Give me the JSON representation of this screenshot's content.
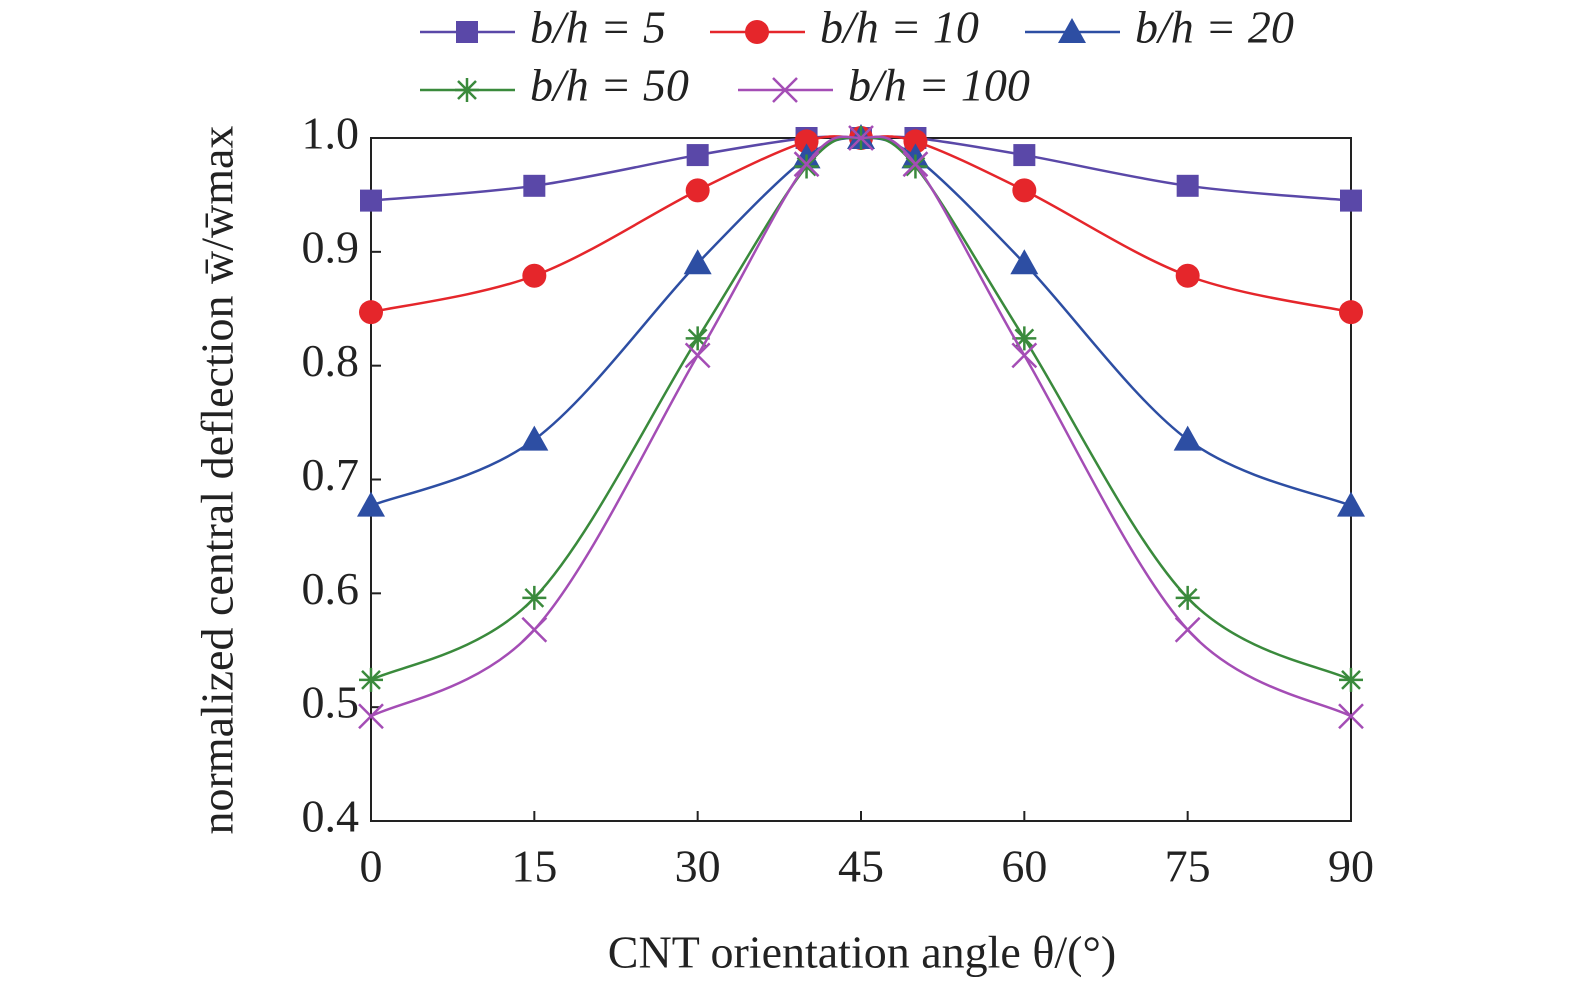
{
  "chart_data": {
    "type": "line",
    "x_label": "CNT orientation angle θ/(°)",
    "y_label": "normalized central deflection w̄/w̄max",
    "x": [
      0,
      15,
      30,
      40,
      45,
      50,
      60,
      75,
      90
    ],
    "series": [
      {
        "name": "b/h = 5",
        "color": "#5a48a8",
        "marker": "square",
        "values": [
          0.945,
          0.958,
          0.985,
          1.0,
          1.0,
          1.0,
          0.985,
          0.958,
          0.945
        ]
      },
      {
        "name": "b/h = 10",
        "color": "#e5262b",
        "marker": "circle",
        "values": [
          0.847,
          0.879,
          0.954,
          0.997,
          1.0,
          0.997,
          0.954,
          0.879,
          0.847
        ]
      },
      {
        "name": "b/h = 20",
        "color": "#2d4ea3",
        "marker": "triangle",
        "values": [
          0.677,
          0.735,
          0.89,
          0.983,
          1.0,
          0.983,
          0.89,
          0.735,
          0.677
        ]
      },
      {
        "name": "b/h = 50",
        "color": "#3a8a3c",
        "marker": "star",
        "values": [
          0.524,
          0.596,
          0.824,
          0.975,
          1.0,
          0.975,
          0.824,
          0.596,
          0.524
        ]
      },
      {
        "name": "b/h = 100",
        "color": "#a44db5",
        "marker": "x",
        "values": [
          0.492,
          0.568,
          0.809,
          0.977,
          1.0,
          0.977,
          0.809,
          0.568,
          0.492
        ]
      }
    ],
    "xlim": [
      0,
      90
    ],
    "xticks": [
      0,
      15,
      30,
      45,
      60,
      75,
      90
    ],
    "ylim": [
      0.4,
      1.0
    ],
    "yticks": [
      0.4,
      0.5,
      0.6,
      0.7,
      0.8,
      0.9,
      {
        "value": 1.0,
        "label": "1.0"
      }
    ],
    "grid": false
  }
}
